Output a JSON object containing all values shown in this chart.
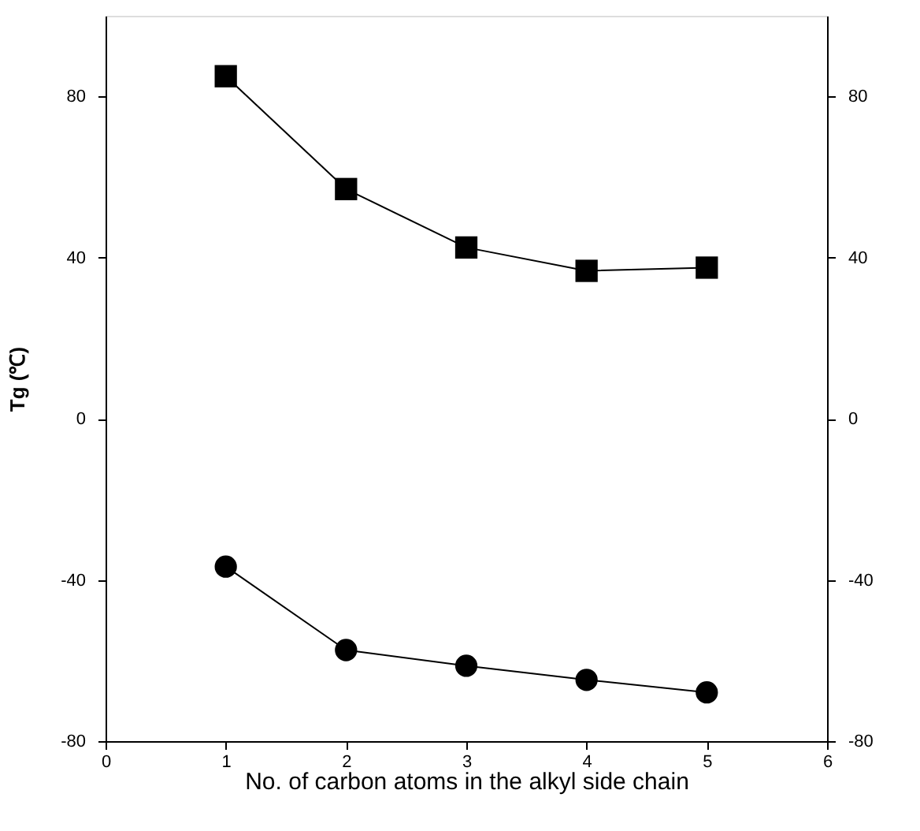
{
  "chart_data": {
    "type": "line",
    "xlabel": "No. of carbon atoms in the alkyl side chain",
    "ylabel": "Tg (℃)",
    "x": [
      1,
      2,
      3,
      4,
      5
    ],
    "series": [
      {
        "color": "#000000",
        "marker": "square",
        "values": [
          85,
          57,
          42.5,
          36.7,
          37.5
        ]
      },
      {
        "color": "#000000",
        "marker": "circle",
        "values": [
          -36.7,
          -57.4,
          -61.3,
          -64.8,
          -67.9
        ]
      }
    ],
    "xlim": [
      0,
      6
    ],
    "xticks": [
      0,
      1,
      2,
      3,
      4,
      5,
      6
    ],
    "ylim": [
      -80,
      100
    ],
    "yticks": [
      -80,
      -40,
      0,
      40,
      80
    ],
    "y2lim": [
      -80,
      100
    ],
    "y2ticks": [
      -80,
      -40,
      0,
      40,
      80
    ],
    "grid": false,
    "line_style": "solid"
  }
}
